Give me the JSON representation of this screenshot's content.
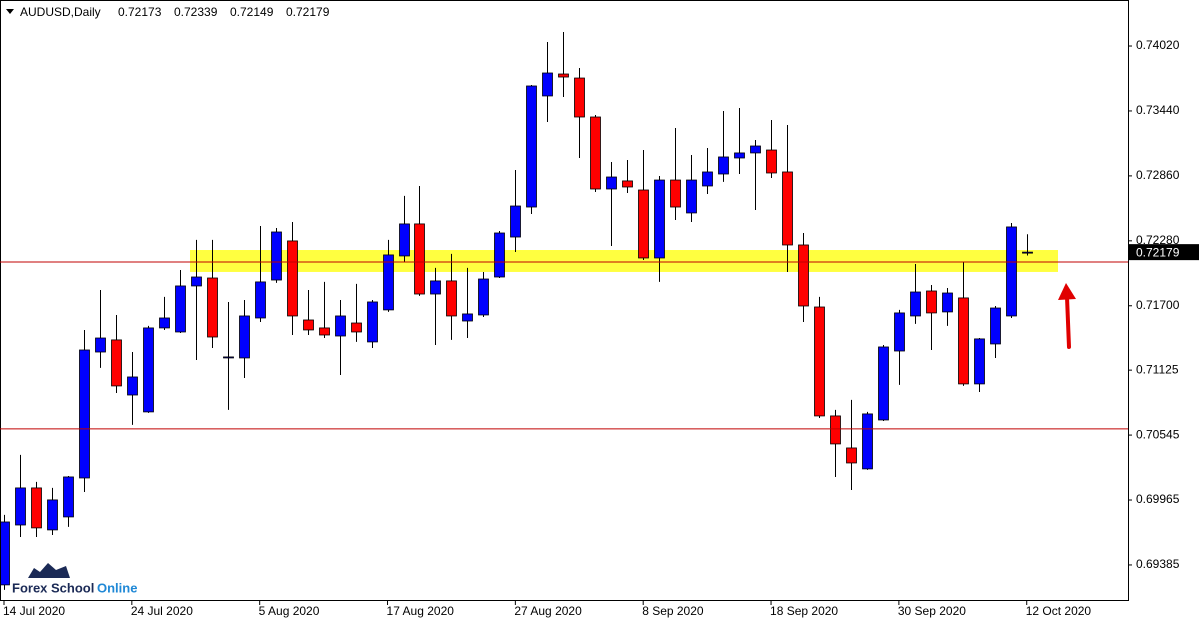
{
  "chart_data": {
    "type": "candlestick",
    "title": "AUDUSD,Daily",
    "categories": [
      "14 Jul 2020",
      null,
      null,
      null,
      null,
      null,
      null,
      null,
      "24 Jul 2020",
      null,
      null,
      null,
      null,
      null,
      null,
      null,
      "5 Aug 2020",
      null,
      null,
      null,
      null,
      null,
      null,
      null,
      "17 Aug 2020",
      null,
      null,
      null,
      null,
      null,
      null,
      null,
      "27 Aug 2020",
      null,
      null,
      null,
      null,
      null,
      null,
      null,
      "8 Sep 2020",
      null,
      null,
      null,
      null,
      null,
      null,
      null,
      "18 Sep 2020",
      null,
      null,
      null,
      null,
      null,
      null,
      null,
      "30 Sep 2020",
      null,
      null,
      null,
      null,
      null,
      null,
      null,
      "12 Oct 2020"
    ],
    "open": [
      0.69207,
      0.69742,
      0.70073,
      0.69698,
      0.69814,
      0.70162,
      0.71287,
      0.71395,
      0.70903,
      0.70752,
      0.71502,
      0.71466,
      0.71877,
      0.71948,
      0.71234,
      0.71234,
      0.71591,
      0.7193,
      0.72279,
      0.71573,
      0.71502,
      0.7143,
      0.71546,
      0.71377,
      0.71663,
      0.72145,
      0.72431,
      0.71805,
      0.71922,
      0.71564,
      0.71618,
      0.71957,
      0.72314,
      0.72582,
      0.73574,
      0.7377,
      0.73734,
      0.73386,
      0.72743,
      0.72815,
      0.72734,
      0.72127,
      0.72823,
      0.72529,
      0.7277,
      0.72877,
      0.7302,
      0.73065,
      0.73091,
      0.72895,
      0.72243,
      0.71689,
      0.70716,
      0.7043,
      0.70243,
      0.7068,
      0.71296,
      0.71609,
      0.71832,
      0.71645,
      0.7177,
      0.71002,
      0.71359,
      0.71609,
      0.72173
    ],
    "high": [
      0.69832,
      0.70368,
      0.70127,
      0.70073,
      0.7018,
      0.71484,
      0.71841,
      0.71618,
      0.71287,
      0.7152,
      0.71779,
      0.7202,
      0.72288,
      0.72288,
      0.71734,
      0.71752,
      0.72413,
      0.72395,
      0.72448,
      0.71841,
      0.71913,
      0.71752,
      0.71895,
      0.71752,
      0.72288,
      0.72681,
      0.7277,
      0.72038,
      0.72163,
      0.72038,
      0.72002,
      0.72368,
      0.72913,
      0.73672,
      0.74056,
      0.74145,
      0.73824,
      0.73404,
      0.72984,
      0.73002,
      0.73091,
      0.72859,
      0.73288,
      0.73047,
      0.73109,
      0.7344,
      0.73466,
      0.73181,
      0.73359,
      0.73315,
      0.7235,
      0.71779,
      0.7077,
      0.70859,
      0.70752,
      0.7135,
      0.71663,
      0.72073,
      0.71886,
      0.71859,
      0.72091,
      0.71412,
      0.71698,
      0.72439,
      0.72339
    ],
    "low": [
      0.69162,
      0.69635,
      0.69635,
      0.69653,
      0.69725,
      0.70037,
      0.71145,
      0.70921,
      0.70636,
      0.70743,
      0.71484,
      0.71457,
      0.71216,
      0.71323,
      0.7077,
      0.71055,
      0.71555,
      0.71904,
      0.71439,
      0.71439,
      0.71412,
      0.71082,
      0.71377,
      0.71323,
      0.71645,
      0.72091,
      0.71788,
      0.7135,
      0.71395,
      0.71412,
      0.716,
      0.71948,
      0.7218,
      0.7252,
      0.73341,
      0.73565,
      0.7302,
      0.72716,
      0.72234,
      0.72707,
      0.72109,
      0.71913,
      0.72466,
      0.72448,
      0.72698,
      0.72806,
      0.72877,
      0.72555,
      0.72841,
      0.72002,
      0.71555,
      0.70698,
      0.70171,
      0.70055,
      0.70234,
      0.70671,
      0.70993,
      0.71538,
      0.71305,
      0.7152,
      0.70984,
      0.7093,
      0.71234,
      0.71591,
      0.72149
    ],
    "close": [
      0.69769,
      0.70073,
      0.69716,
      0.69966,
      0.70171,
      0.71305,
      0.71412,
      0.70984,
      0.71064,
      0.71502,
      0.71591,
      0.71877,
      0.71957,
      0.71421,
      0.71243,
      0.71609,
      0.71913,
      0.72359,
      0.71609,
      0.71484,
      0.71439,
      0.71609,
      0.71466,
      0.71734,
      0.72154,
      0.72431,
      0.71805,
      0.71922,
      0.71609,
      0.71627,
      0.71939,
      0.7235,
      0.72591,
      0.73663,
      0.73779,
      0.73743,
      0.73386,
      0.72743,
      0.7285,
      0.72761,
      0.72127,
      0.72823,
      0.72582,
      0.72823,
      0.72895,
      0.73029,
      0.73065,
      0.73127,
      0.72886,
      0.72243,
      0.71698,
      0.70716,
      0.70466,
      0.70296,
      0.70734,
      0.71332,
      0.71636,
      0.71823,
      0.71636,
      0.71814,
      0.71002,
      0.71404,
      0.7168,
      0.72404,
      0.72179
    ],
    "up_color": "#0000ff",
    "down_color": "#ff0000",
    "ylim": [
      0.69072,
      0.74431
    ],
    "yticks": [
      {
        "value": 0.7402,
        "label": "0.74020"
      },
      {
        "value": 0.7344,
        "label": "0.73440"
      },
      {
        "value": 0.7286,
        "label": "0.72860"
      },
      {
        "value": 0.7228,
        "label": "0.72280"
      },
      {
        "value": 0.717,
        "label": "0.71700"
      },
      0.71125,
      0.70545,
      0.69965,
      0.69385
    ],
    "levels": [
      {
        "value": 0.72091,
        "color": "#c00000"
      },
      {
        "value": 0.706,
        "color": "#c00000"
      }
    ],
    "zone": {
      "low": 0.72002,
      "high": 0.72198,
      "color": "#ffff40"
    },
    "logo": {
      "part1": "Forex School",
      "part2": "Online"
    }
  }
}
